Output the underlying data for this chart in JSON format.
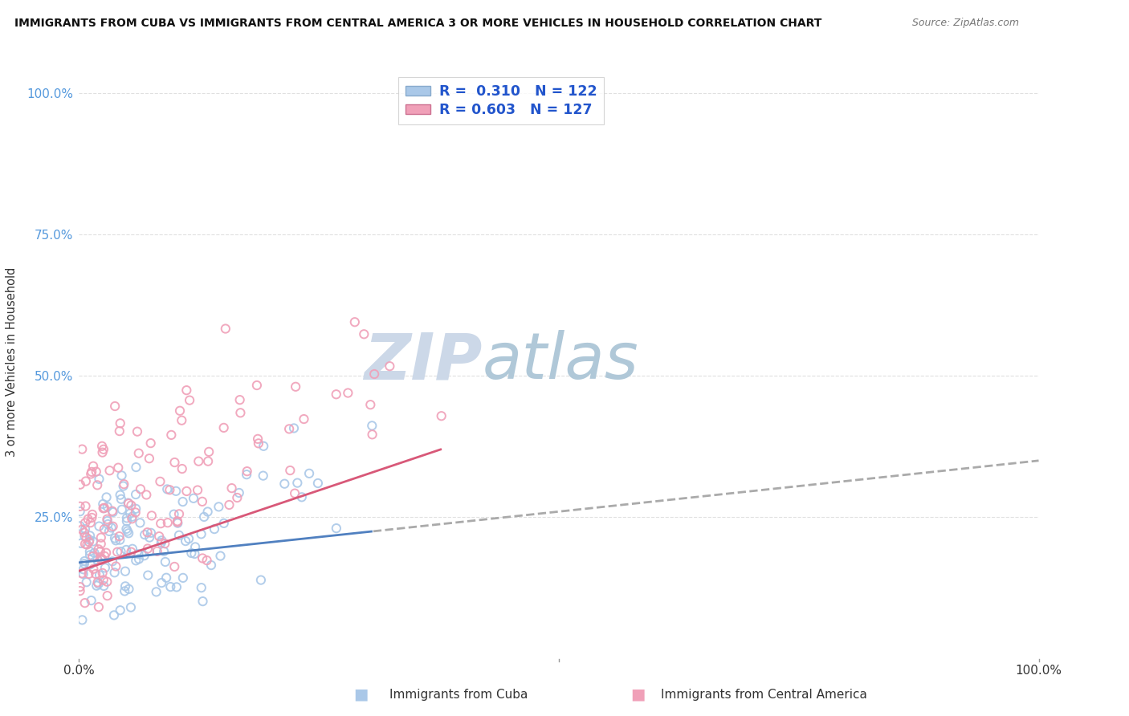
{
  "title": "IMMIGRANTS FROM CUBA VS IMMIGRANTS FROM CENTRAL AMERICA 3 OR MORE VEHICLES IN HOUSEHOLD CORRELATION CHART",
  "source": "Source: ZipAtlas.com",
  "ylabel": "3 or more Vehicles in Household",
  "legend_r_cuba": "R =  0.310",
  "legend_n_cuba": "N = 122",
  "legend_r_central": "R = 0.603",
  "legend_n_central": "N = 127",
  "label_cuba": "Immigrants from Cuba",
  "label_central": "Immigrants from Central America",
  "color_cuba": "#aac8e8",
  "color_central": "#f0a0b8",
  "color_line_cuba": "#5080c0",
  "color_line_central": "#d85878",
  "color_dash_cuba": "#aaaaaa",
  "watermark_zip": "ZIP",
  "watermark_atlas": "atlas",
  "watermark_color_zip": "#ccd8e8",
  "watermark_color_atlas": "#b0c8d8",
  "background_color": "#ffffff",
  "grid_color": "#e0e0e0",
  "N_cuba": 122,
  "N_central": 127,
  "R_cuba": 0.31,
  "R_central": 0.603,
  "tick_color": "#5599dd",
  "legend_text_color": "#2255cc",
  "source_color": "#777777",
  "title_color": "#111111",
  "xlabel_label_color": "#333333"
}
